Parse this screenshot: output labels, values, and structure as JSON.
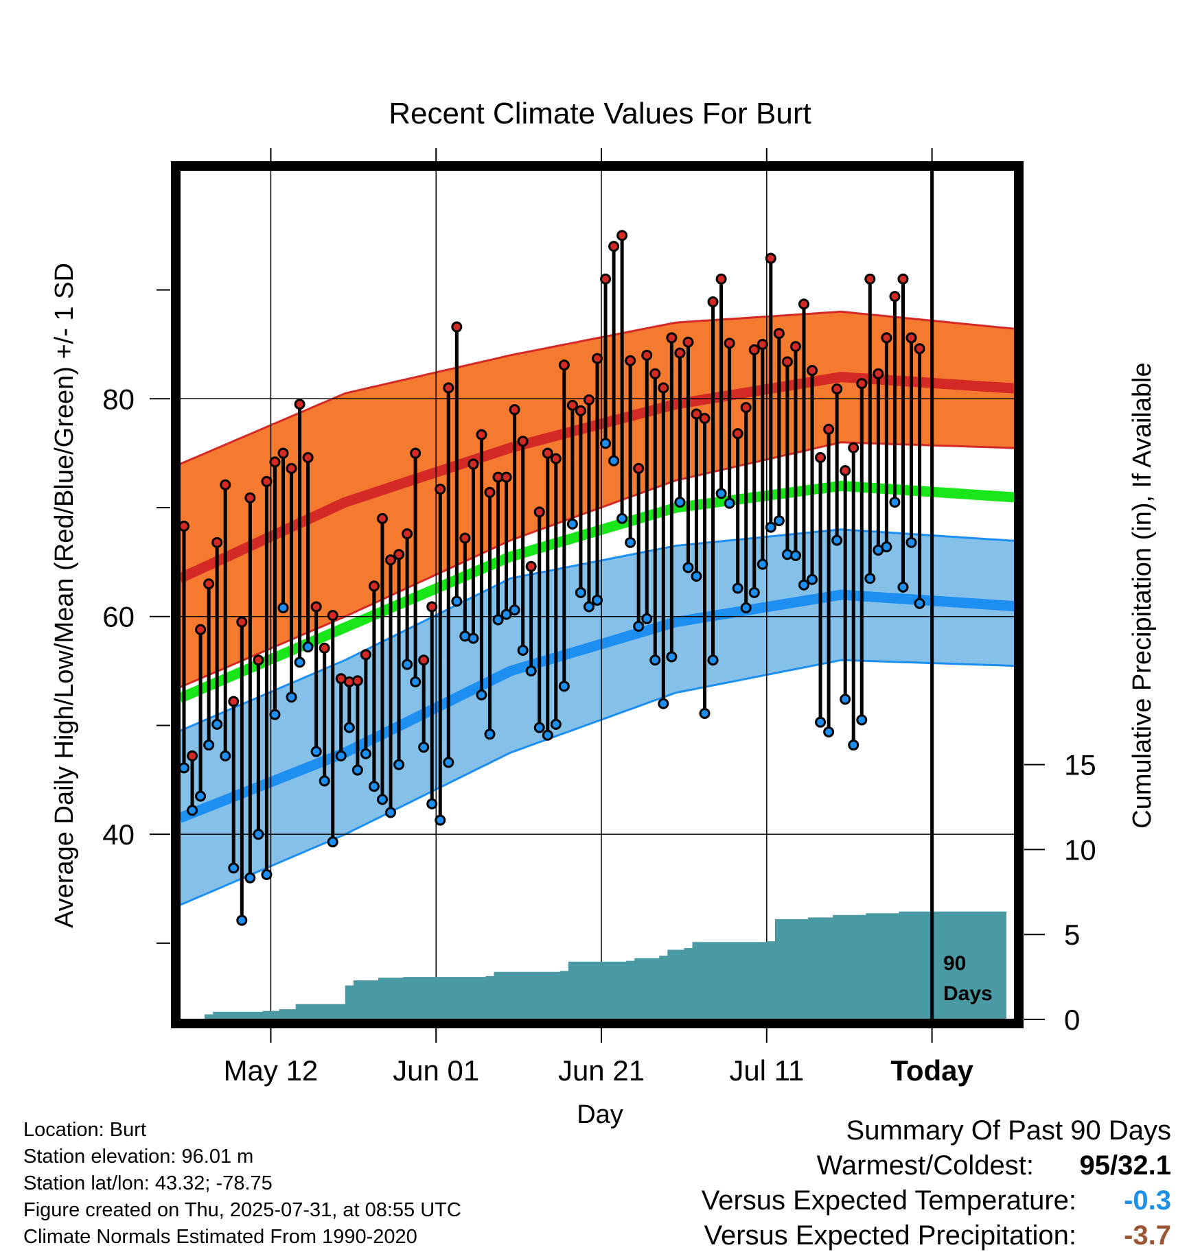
{
  "chart_data": {
    "type": "line",
    "title": "Recent Climate Values For Burt",
    "xlabel": "Day",
    "ylabel": "Average Daily High/Low/Mean (Red/Blue/Green) +/- 1 SD",
    "y2label": "Cumulative Precipitation (in), If Available",
    "x_ticks": [
      "May 12",
      "Jun 01",
      "Jun 21",
      "Jul 11",
      "Today"
    ],
    "y_ticks": [
      40,
      60,
      80
    ],
    "y2_ticks": [
      0,
      5,
      10,
      15
    ],
    "ylim": [
      23,
      101
    ],
    "y2lim": [
      0,
      50
    ],
    "x_start": "2025-05-01",
    "x_end": "2025-08-10",
    "today_marker": "90 Days",
    "normals": {
      "high_mean": [
        [
          0,
          63.5
        ],
        [
          20,
          70.5
        ],
        [
          40,
          75.5
        ],
        [
          60,
          79.5
        ],
        [
          80,
          82.0
        ],
        [
          100,
          81.0
        ]
      ],
      "high_sd_upper": [
        [
          0,
          74
        ],
        [
          20,
          80.5
        ],
        [
          40,
          84
        ],
        [
          60,
          87
        ],
        [
          80,
          88
        ],
        [
          100,
          86.5
        ]
      ],
      "high_sd_lower": [
        [
          0,
          53.5
        ],
        [
          20,
          60
        ],
        [
          40,
          67
        ],
        [
          60,
          72.5
        ],
        [
          80,
          76
        ],
        [
          100,
          75.5
        ]
      ],
      "mean": [
        [
          0,
          52.5
        ],
        [
          20,
          59
        ],
        [
          40,
          65.5
        ],
        [
          60,
          70
        ],
        [
          80,
          72
        ],
        [
          100,
          71
        ]
      ],
      "low_mean": [
        [
          0,
          41.5
        ],
        [
          20,
          47.5
        ],
        [
          40,
          55
        ],
        [
          60,
          59.5
        ],
        [
          80,
          62
        ],
        [
          100,
          61
        ]
      ],
      "low_sd_upper": [
        [
          0,
          49.5
        ],
        [
          20,
          56
        ],
        [
          40,
          63.5
        ],
        [
          60,
          66.5
        ],
        [
          80,
          68
        ],
        [
          100,
          67
        ]
      ],
      "low_sd_lower": [
        [
          0,
          33.5
        ],
        [
          20,
          40
        ],
        [
          40,
          47.5
        ],
        [
          60,
          53
        ],
        [
          80,
          56
        ],
        [
          100,
          55.5
        ]
      ]
    },
    "daily": [
      {
        "x": 0.5,
        "high": 68.3,
        "low": 46.1
      },
      {
        "x": 1.5,
        "high": 47.2,
        "low": 42.2
      },
      {
        "x": 2.5,
        "high": 58.8,
        "low": 43.5
      },
      {
        "x": 3.5,
        "high": 63.0,
        "low": 48.2
      },
      {
        "x": 4.5,
        "high": 66.8,
        "low": 50.1
      },
      {
        "x": 5.5,
        "high": 72.1,
        "low": 47.2
      },
      {
        "x": 6.5,
        "high": 52.2,
        "low": 36.9
      },
      {
        "x": 7.5,
        "high": 59.5,
        "low": 32.1
      },
      {
        "x": 8.5,
        "high": 70.9,
        "low": 36.0
      },
      {
        "x": 9.5,
        "high": 56.0,
        "low": 40.0
      },
      {
        "x": 10.5,
        "high": 72.4,
        "low": 36.3
      },
      {
        "x": 11.5,
        "high": 74.2,
        "low": 51.0
      },
      {
        "x": 12.5,
        "high": 75.0,
        "low": 60.8
      },
      {
        "x": 13.5,
        "high": 73.6,
        "low": 52.6
      },
      {
        "x": 14.5,
        "high": 79.5,
        "low": 55.8
      },
      {
        "x": 15.5,
        "high": 74.6,
        "low": 57.2
      },
      {
        "x": 16.5,
        "high": 60.9,
        "low": 47.6
      },
      {
        "x": 17.5,
        "high": 57.1,
        "low": 44.9
      },
      {
        "x": 18.5,
        "high": 60.1,
        "low": 39.3
      },
      {
        "x": 19.5,
        "high": 54.3,
        "low": 47.2
      },
      {
        "x": 20.5,
        "high": 54.0,
        "low": 49.8
      },
      {
        "x": 21.5,
        "high": 54.1,
        "low": 45.9
      },
      {
        "x": 22.5,
        "high": 56.5,
        "low": 47.4
      },
      {
        "x": 23.5,
        "high": 62.8,
        "low": 44.4
      },
      {
        "x": 24.5,
        "high": 69.0,
        "low": 43.2
      },
      {
        "x": 25.5,
        "high": 65.2,
        "low": 42.0
      },
      {
        "x": 26.5,
        "high": 65.7,
        "low": 46.4
      },
      {
        "x": 27.5,
        "high": 67.6,
        "low": 55.6
      },
      {
        "x": 28.5,
        "high": 75.0,
        "low": 54.0
      },
      {
        "x": 29.5,
        "high": 56.0,
        "low": 48.0
      },
      {
        "x": 30.5,
        "high": 60.9,
        "low": 42.8
      },
      {
        "x": 31.5,
        "high": 71.7,
        "low": 41.3
      },
      {
        "x": 32.5,
        "high": 81.0,
        "low": 46.6
      },
      {
        "x": 33.5,
        "high": 86.6,
        "low": 61.4
      },
      {
        "x": 34.5,
        "high": 67.2,
        "low": 58.2
      },
      {
        "x": 35.5,
        "high": 74.0,
        "low": 58.0
      },
      {
        "x": 36.5,
        "high": 76.7,
        "low": 52.8
      },
      {
        "x": 37.5,
        "high": 71.4,
        "low": 49.2
      },
      {
        "x": 38.5,
        "high": 72.8,
        "low": 59.7
      },
      {
        "x": 39.5,
        "high": 72.8,
        "low": 60.2
      },
      {
        "x": 40.5,
        "high": 79.0,
        "low": 60.6
      },
      {
        "x": 41.5,
        "high": 76.1,
        "low": 56.9
      },
      {
        "x": 42.5,
        "high": 64.6,
        "low": 55.0
      },
      {
        "x": 43.5,
        "high": 69.6,
        "low": 49.8
      },
      {
        "x": 44.5,
        "high": 75.0,
        "low": 49.1
      },
      {
        "x": 45.5,
        "high": 74.5,
        "low": 50.1
      },
      {
        "x": 46.5,
        "high": 83.1,
        "low": 53.6
      },
      {
        "x": 47.5,
        "high": 79.4,
        "low": 68.5
      },
      {
        "x": 48.5,
        "high": 78.9,
        "low": 62.2
      },
      {
        "x": 49.5,
        "high": 79.9,
        "low": 60.9
      },
      {
        "x": 50.5,
        "high": 83.7,
        "low": 61.5
      },
      {
        "x": 51.5,
        "high": 91.0,
        "low": 75.9
      },
      {
        "x": 52.5,
        "high": 94.0,
        "low": 74.3
      },
      {
        "x": 53.5,
        "high": 95.0,
        "low": 69.0
      },
      {
        "x": 54.5,
        "high": 83.5,
        "low": 66.8
      },
      {
        "x": 55.5,
        "high": 73.6,
        "low": 59.1
      },
      {
        "x": 56.5,
        "high": 84.0,
        "low": 59.8
      },
      {
        "x": 57.5,
        "high": 82.3,
        "low": 56.0
      },
      {
        "x": 58.5,
        "high": 81.0,
        "low": 52.0
      },
      {
        "x": 59.5,
        "high": 85.6,
        "low": 56.3
      },
      {
        "x": 60.5,
        "high": 84.2,
        "low": 70.5
      },
      {
        "x": 61.5,
        "high": 85.2,
        "low": 64.5
      },
      {
        "x": 62.5,
        "high": 78.6,
        "low": 63.7
      },
      {
        "x": 63.5,
        "high": 78.2,
        "low": 51.1
      },
      {
        "x": 64.5,
        "high": 88.9,
        "low": 56.0
      },
      {
        "x": 65.5,
        "high": 91.0,
        "low": 71.3
      },
      {
        "x": 66.5,
        "high": 85.1,
        "low": 70.4
      },
      {
        "x": 67.5,
        "high": 76.8,
        "low": 62.6
      },
      {
        "x": 68.5,
        "high": 79.2,
        "low": 60.8
      },
      {
        "x": 69.5,
        "high": 84.5,
        "low": 62.2
      },
      {
        "x": 70.5,
        "high": 85.0,
        "low": 64.8
      },
      {
        "x": 71.5,
        "high": 92.9,
        "low": 68.2
      },
      {
        "x": 72.5,
        "high": 86.0,
        "low": 68.8
      },
      {
        "x": 73.5,
        "high": 83.4,
        "low": 65.7
      },
      {
        "x": 74.5,
        "high": 84.8,
        "low": 65.6
      },
      {
        "x": 75.5,
        "high": 88.7,
        "low": 62.9
      },
      {
        "x": 76.5,
        "high": 82.6,
        "low": 63.4
      },
      {
        "x": 77.5,
        "high": 74.6,
        "low": 50.3
      },
      {
        "x": 78.5,
        "high": 77.2,
        "low": 49.4
      },
      {
        "x": 79.5,
        "high": 80.9,
        "low": 67.0
      },
      {
        "x": 80.5,
        "high": 73.4,
        "low": 52.4
      },
      {
        "x": 81.5,
        "high": 75.5,
        "low": 48.2
      },
      {
        "x": 82.5,
        "high": 81.4,
        "low": 50.5
      },
      {
        "x": 83.5,
        "high": 91.0,
        "low": 63.5
      },
      {
        "x": 84.5,
        "high": 82.3,
        "low": 66.1
      },
      {
        "x": 85.5,
        "high": 85.6,
        "low": 66.4
      },
      {
        "x": 86.5,
        "high": 89.4,
        "low": 70.5
      },
      {
        "x": 87.5,
        "high": 91.0,
        "low": 62.7
      },
      {
        "x": 88.5,
        "high": 85.6,
        "low": 66.8
      },
      {
        "x": 89.5,
        "high": 84.6,
        "low": 61.2
      }
    ],
    "precip_cumulative": [
      [
        0,
        0
      ],
      [
        2.5,
        0
      ],
      [
        3,
        0.3
      ],
      [
        4,
        0.45
      ],
      [
        10,
        0.5
      ],
      [
        12,
        0.6
      ],
      [
        14,
        0.9
      ],
      [
        18,
        0.9
      ],
      [
        20,
        2.0
      ],
      [
        21,
        2.3
      ],
      [
        24,
        2.45
      ],
      [
        27,
        2.5
      ],
      [
        37,
        2.55
      ],
      [
        38,
        2.8
      ],
      [
        46,
        2.85
      ],
      [
        47,
        3.4
      ],
      [
        54,
        3.45
      ],
      [
        55,
        3.6
      ],
      [
        58,
        3.75
      ],
      [
        59,
        4.1
      ],
      [
        61,
        4.2
      ],
      [
        62,
        4.55
      ],
      [
        71,
        4.6
      ],
      [
        72,
        5.9
      ],
      [
        76,
        6.0
      ],
      [
        79,
        6.15
      ],
      [
        83,
        6.25
      ],
      [
        87,
        6.35
      ],
      [
        100,
        6.4
      ]
    ]
  },
  "footer": {
    "location": "Location: Burt",
    "elevation": "Station elevation: 96.01 m",
    "latlon": "Station lat/lon: 43.32; -78.75",
    "created": "Figure created on Thu, 2025-07-31, at 08:55 UTC",
    "normals": "Climate Normals Estimated From 1990-2020"
  },
  "summary": {
    "title": "Summary Of Past 90 Days",
    "warmest_label": "Warmest/Coldest:",
    "warmest_value": "95/32.1",
    "temp_label": "Versus Expected Temperature:",
    "temp_value": "-0.3",
    "precip_label": "Versus Expected Precipitation:",
    "precip_value": "-3.7"
  },
  "colors": {
    "high_band": "#f47a30",
    "high_line": "#d42a26",
    "mean_line": "#19e619",
    "low_band": "#85c0e8",
    "low_line": "#1c8ff0",
    "precip": "#4a9aa3",
    "temp_value": "#1e90e6",
    "precip_value": "#9b5532"
  }
}
